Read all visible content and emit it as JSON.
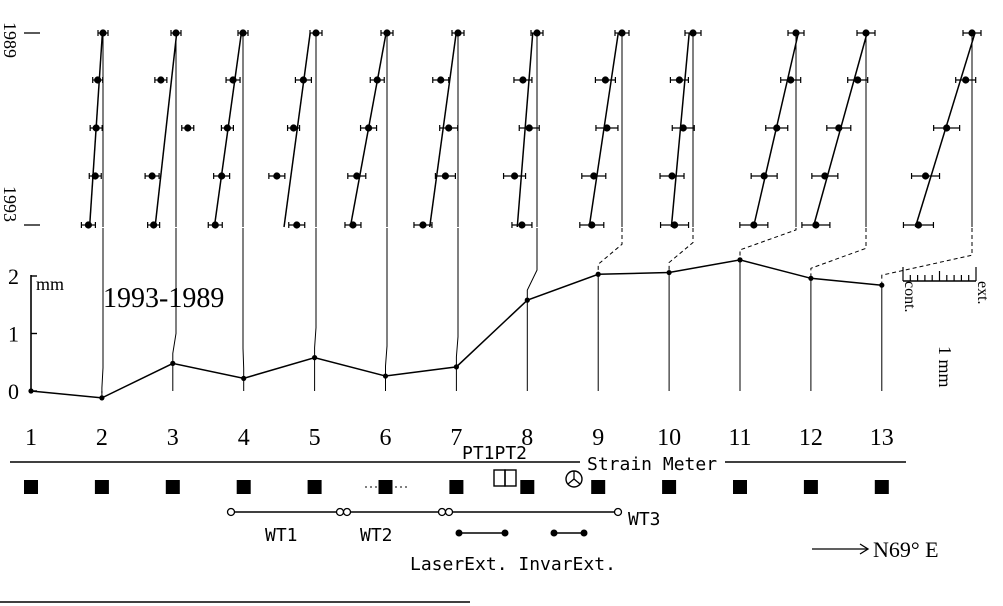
{
  "chart_data": {
    "type": "line",
    "title": "1993-1989",
    "y_unit": "mm",
    "ylim": [
      0,
      2
    ],
    "y_ticks": [
      "0",
      "1",
      "2"
    ],
    "x_ticks": [
      "1",
      "2",
      "3",
      "4",
      "5",
      "6",
      "7",
      "8",
      "9",
      "10",
      "11",
      "12",
      "13"
    ],
    "x": [
      1,
      2,
      3,
      4,
      5,
      6,
      7,
      8,
      9,
      10,
      11,
      12,
      13
    ],
    "cumulative_values": [
      0,
      -0.12,
      0.48,
      0.22,
      0.58,
      0.26,
      0.42,
      1.58,
      2.03,
      2.06,
      2.28,
      1.96,
      1.84
    ],
    "year_labels": {
      "top": "1989",
      "bottom": "1993"
    },
    "yearly_offsets_mm": [
      [
        0.0,
        -0.1,
        -0.08,
        -0.12,
        -0.2
      ],
      [
        0.0,
        -0.18,
        0.12,
        -0.3,
        -0.32
      ],
      [
        0.0,
        -0.15,
        -0.2,
        -0.32,
        -0.38
      ],
      [
        0.0,
        -0.2,
        -0.28,
        -0.55,
        -0.25
      ],
      [
        0.0,
        -0.12,
        -0.28,
        -0.4,
        -0.48
      ],
      [
        0.0,
        -0.25,
        -0.1,
        -0.2,
        -0.48
      ],
      [
        0.0,
        -0.22,
        -0.12,
        -0.28,
        -0.22
      ],
      [
        0.0,
        -0.2,
        -0.22,
        -0.4,
        -0.4
      ],
      [
        0.0,
        -0.2,
        -0.12,
        -0.26,
        -0.28
      ],
      [
        0.0,
        -0.1,
        -0.25,
        -0.45,
        -0.55
      ],
      [
        0.0,
        -0.1,
        -0.4,
        -0.55,
        -0.7
      ],
      [
        0.0,
        -0.1,
        -0.32,
        -0.65,
        -0.72
      ]
    ],
    "scale_bar": {
      "label": "1 mm",
      "left_label": "cont.",
      "right_label": "ext."
    }
  },
  "diagram": {
    "pt_label": "PT1PT2",
    "strain_meter_label": "Strain Meter",
    "wt_labels": [
      "WT1",
      "WT2",
      "WT3"
    ],
    "extensometer_labels": "LaserExt. InvarExt.",
    "direction_label": "N69° E"
  }
}
